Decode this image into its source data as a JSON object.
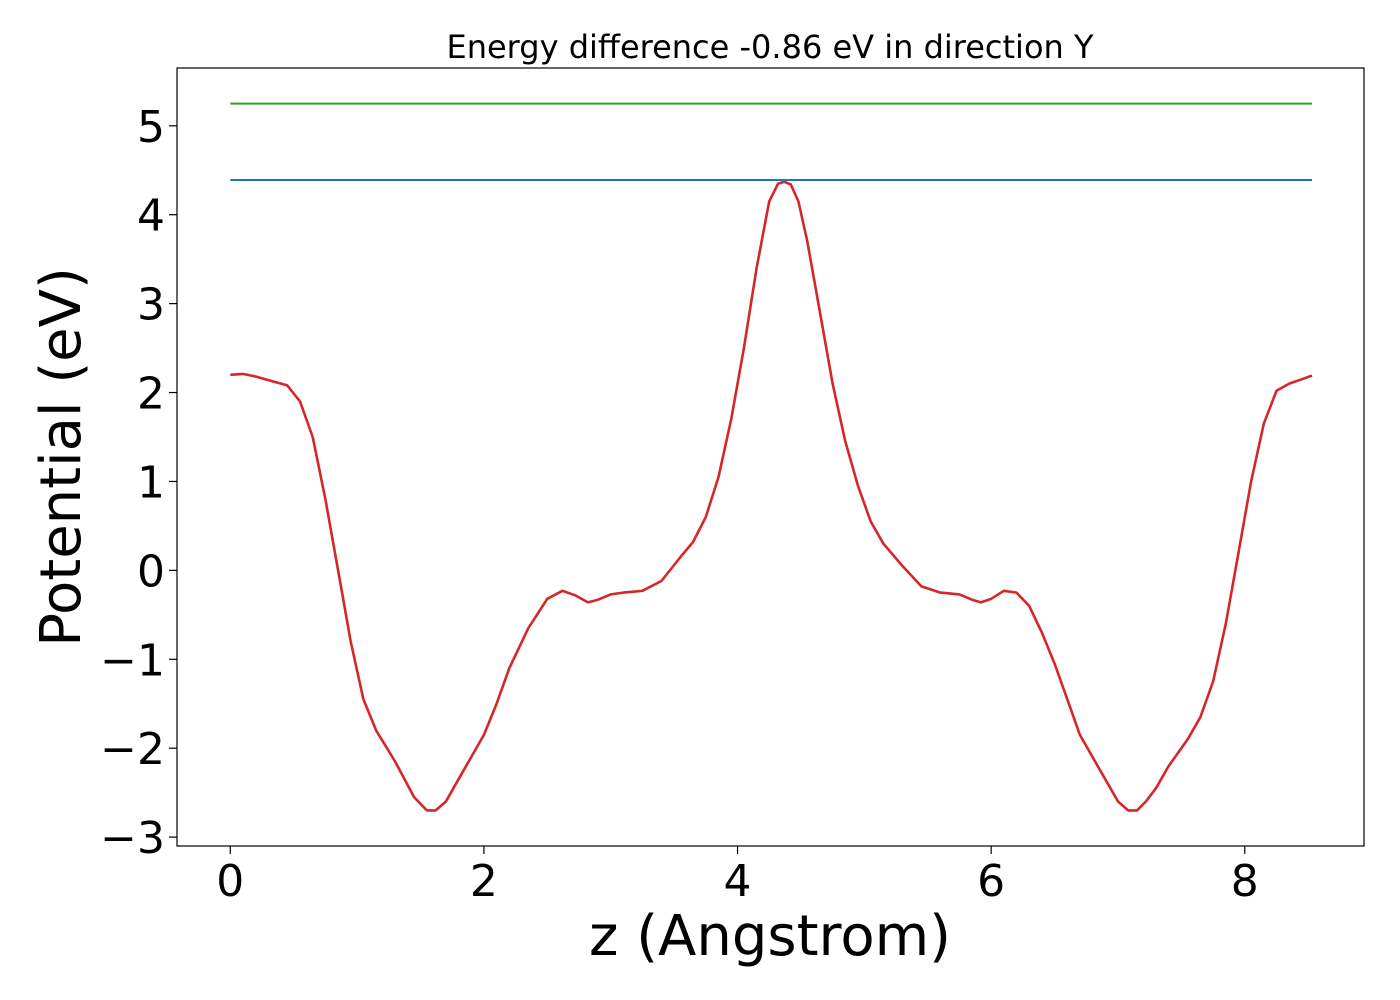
{
  "chart_data": {
    "type": "line",
    "title": "Energy difference -0.86 eV in direction Y",
    "xlabel": "z (Angstrom)",
    "ylabel": "Potential (eV)",
    "xlim": [
      -0.42,
      8.94
    ],
    "ylim": [
      -3.1,
      5.65
    ],
    "xticks": [
      0,
      2,
      4,
      6,
      8
    ],
    "yticks": [
      -3,
      -2,
      -1,
      0,
      1,
      2,
      3,
      4,
      5
    ],
    "xtick_labels": [
      "0",
      "2",
      "4",
      "6",
      "8"
    ],
    "ytick_labels": [
      "−3",
      "−2",
      "−1",
      "0",
      "1",
      "2",
      "3",
      "4",
      "5"
    ],
    "grid": false,
    "series": [
      {
        "color": "#d62728",
        "x": [
          0,
          0.1,
          0.2,
          0.3,
          0.45,
          0.55,
          0.65,
          0.75,
          0.85,
          0.95,
          1.05,
          1.15,
          1.3,
          1.45,
          1.55,
          1.62,
          1.7,
          1.8,
          1.9,
          2.0,
          2.1,
          2.2,
          2.35,
          2.5,
          2.62,
          2.72,
          2.82,
          2.9,
          3.0,
          3.1,
          3.25,
          3.4,
          3.55,
          3.65,
          3.75,
          3.85,
          3.95,
          4.05,
          4.15,
          4.25,
          4.32,
          4.37,
          4.42,
          4.48,
          4.55,
          4.65,
          4.75,
          4.85,
          4.95,
          5.05,
          5.15,
          5.3,
          5.45,
          5.6,
          5.75,
          5.85,
          5.92,
          6.0,
          6.1,
          6.2,
          6.3,
          6.4,
          6.5,
          6.6,
          6.7,
          6.8,
          6.9,
          7.0,
          7.08,
          7.15,
          7.22,
          7.3,
          7.4,
          7.55,
          7.65,
          7.75,
          7.85,
          7.95,
          8.05,
          8.15,
          8.25,
          8.35,
          8.45,
          8.53
        ],
        "y": [
          2.2,
          2.21,
          2.18,
          2.14,
          2.08,
          1.9,
          1.5,
          0.8,
          0.0,
          -0.8,
          -1.45,
          -1.8,
          -2.15,
          -2.55,
          -2.7,
          -2.7,
          -2.6,
          -2.35,
          -2.1,
          -1.85,
          -1.5,
          -1.1,
          -0.65,
          -0.32,
          -0.23,
          -0.28,
          -0.36,
          -0.33,
          -0.27,
          -0.25,
          -0.23,
          -0.12,
          0.15,
          0.32,
          0.6,
          1.05,
          1.7,
          2.5,
          3.4,
          4.15,
          4.35,
          4.37,
          4.34,
          4.15,
          3.7,
          2.9,
          2.1,
          1.45,
          0.95,
          0.55,
          0.3,
          0.05,
          -0.18,
          -0.25,
          -0.27,
          -0.33,
          -0.36,
          -0.32,
          -0.23,
          -0.25,
          -0.4,
          -0.7,
          -1.05,
          -1.45,
          -1.85,
          -2.1,
          -2.35,
          -2.6,
          -2.7,
          -2.7,
          -2.6,
          -2.45,
          -2.2,
          -1.9,
          -1.65,
          -1.25,
          -0.6,
          0.2,
          1.0,
          1.65,
          2.02,
          2.1,
          2.15,
          2.19
        ]
      },
      {
        "color": "#1f77b4",
        "x": [
          0,
          8.53
        ],
        "y": [
          4.39,
          4.39
        ]
      },
      {
        "color": "#2ca02c",
        "x": [
          0,
          8.53
        ],
        "y": [
          5.25,
          5.25
        ]
      }
    ]
  }
}
